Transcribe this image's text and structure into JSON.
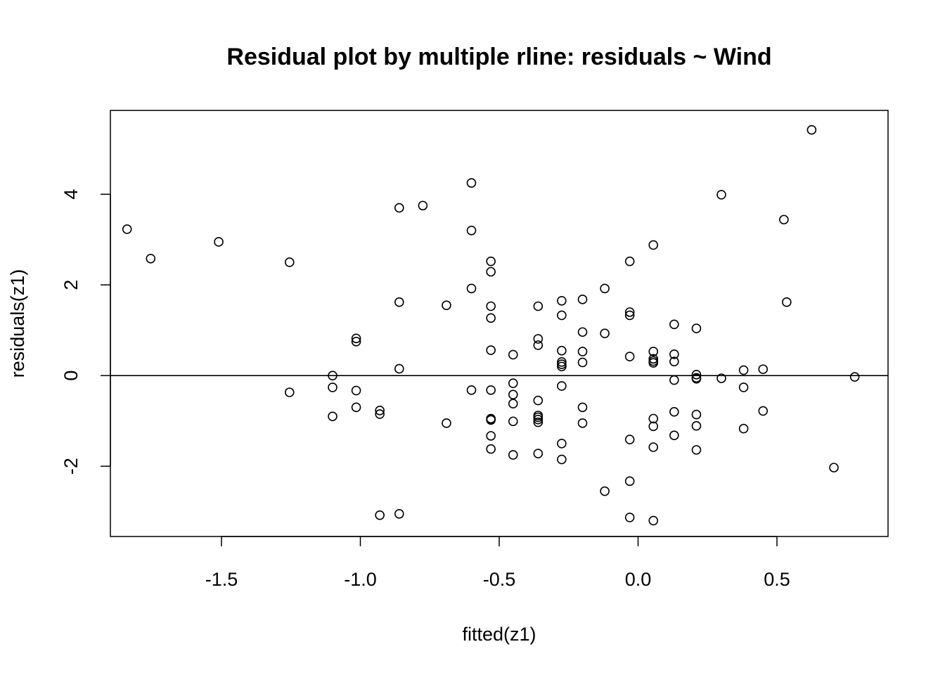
{
  "chart_data": {
    "type": "scatter",
    "title": "Residual plot by multiple rline: residuals ~ Wind",
    "xlabel": "fitted(z1)",
    "ylabel": "residuals(z1)",
    "xlim": [
      -1.9,
      0.9
    ],
    "ylim": [
      -3.55,
      5.85
    ],
    "xticks": [
      -1.5,
      -1.0,
      -0.5,
      0.0,
      0.5
    ],
    "xtick_labels": [
      "-1.5",
      "-1.0",
      "-0.5",
      "0.0",
      "0.5"
    ],
    "yticks": [
      -2,
      0,
      2,
      4
    ],
    "ytick_labels": [
      "-2",
      "0",
      "2",
      "4"
    ],
    "hline": 0,
    "grid": false,
    "legend": "none",
    "point_color": "#000000",
    "x": [
      -1.84,
      -1.755,
      -1.51,
      -1.255,
      -1.255,
      -1.1,
      -1.1,
      -1.1,
      -1.015,
      -1.015,
      -1.015,
      -1.015,
      -0.93,
      -0.93,
      -0.93,
      -0.86,
      -0.86,
      -0.86,
      -0.86,
      -0.775,
      -0.69,
      -0.69,
      -0.6,
      -0.6,
      -0.6,
      -0.6,
      -0.53,
      -0.53,
      -0.53,
      -0.53,
      -0.53,
      -0.53,
      -0.53,
      -0.53,
      -0.53,
      -0.53,
      -0.53,
      -0.45,
      -0.45,
      -0.45,
      -0.45,
      -0.45,
      -0.45,
      -0.36,
      -0.36,
      -0.36,
      -0.36,
      -0.36,
      -0.36,
      -0.36,
      -0.36,
      -0.36,
      -0.275,
      -0.275,
      -0.275,
      -0.275,
      -0.275,
      -0.275,
      -0.275,
      -0.275,
      -0.275,
      -0.2,
      -0.2,
      -0.2,
      -0.2,
      -0.2,
      -0.2,
      -0.12,
      -0.12,
      -0.12,
      -0.03,
      -0.03,
      -0.03,
      -0.03,
      -0.03,
      -0.03,
      -0.03,
      0.055,
      0.055,
      0.055,
      0.055,
      0.055,
      0.055,
      0.055,
      0.055,
      0.055,
      0.13,
      0.13,
      0.13,
      0.13,
      0.13,
      0.13,
      0.21,
      0.21,
      0.21,
      0.21,
      0.21,
      0.21,
      0.21,
      0.3,
      0.3,
      0.38,
      0.38,
      0.38,
      0.45,
      0.45,
      0.525,
      0.535,
      0.625,
      0.705,
      0.78
    ],
    "y": [
      3.23,
      2.58,
      2.95,
      2.5,
      -0.37,
      0.0,
      -0.26,
      -0.9,
      0.82,
      0.75,
      -0.33,
      -0.7,
      -0.77,
      -0.85,
      -3.08,
      3.7,
      1.62,
      0.15,
      -3.05,
      3.75,
      1.55,
      -1.05,
      4.25,
      3.2,
      1.92,
      -0.32,
      2.52,
      2.29,
      1.53,
      1.27,
      0.56,
      -0.32,
      -0.95,
      -0.97,
      -1.33,
      -1.62,
      -0.98,
      0.46,
      -0.17,
      -0.42,
      -0.62,
      -1.01,
      -1.75,
      1.53,
      0.81,
      0.67,
      -0.55,
      -0.88,
      -0.92,
      -0.97,
      -1.03,
      -1.72,
      1.65,
      1.33,
      0.55,
      0.3,
      0.25,
      0.2,
      -0.23,
      -1.5,
      -1.85,
      1.68,
      0.96,
      0.53,
      0.29,
      -0.7,
      -1.05,
      1.92,
      0.93,
      -2.55,
      2.52,
      1.4,
      1.33,
      0.42,
      -1.41,
      -2.33,
      -3.13,
      2.88,
      0.53,
      0.37,
      0.32,
      0.28,
      -0.95,
      -1.12,
      -1.58,
      -3.2,
      1.13,
      0.47,
      0.31,
      -0.1,
      -0.8,
      -1.32,
      1.04,
      0.02,
      -0.05,
      -0.86,
      -1.11,
      -1.64,
      -0.07,
      3.99,
      -0.06,
      0.12,
      -0.26,
      -1.17,
      0.14,
      -0.78,
      3.44,
      1.62,
      5.42,
      -2.03,
      -0.03
    ]
  }
}
